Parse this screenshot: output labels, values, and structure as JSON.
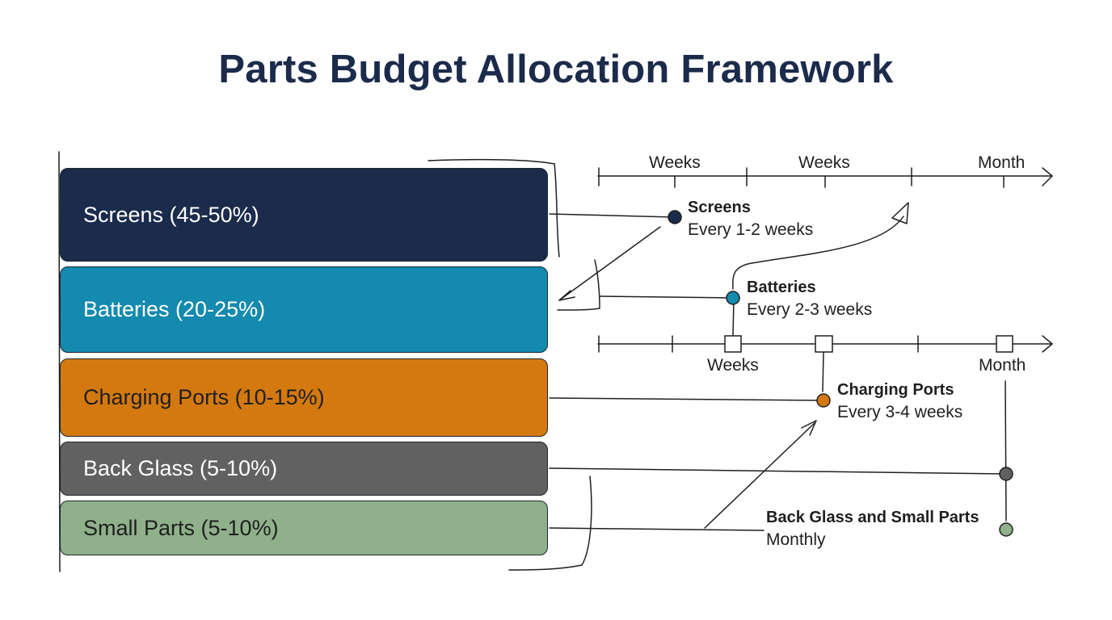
{
  "title": "Parts Budget Allocation Framework",
  "bars": [
    {
      "label": "Screens (45-50%)",
      "color": "#1b2b4b"
    },
    {
      "label": "Batteries (20-25%)",
      "color": "#138aae"
    },
    {
      "label": "Charging Ports (10-15%)",
      "color": "#d4790f"
    },
    {
      "label": "Back Glass (5-10%)",
      "color": "#616161"
    },
    {
      "label": "Small Parts (5-10%)",
      "color": "#8fb08b"
    }
  ],
  "top_timeline": {
    "ticks": [
      "Weeks",
      "Weeks",
      "Month"
    ]
  },
  "bottom_timeline": {
    "ticks": [
      "Weeks",
      "Month"
    ]
  },
  "schedules": [
    {
      "title": "Screens",
      "frequency": "Every 1-2 weeks",
      "color": "#1b2b4b"
    },
    {
      "title": "Batteries",
      "frequency": "Every 2-3 weeks",
      "color": "#138aae"
    },
    {
      "title": "Charging Ports",
      "frequency": "Every 3-4 weeks",
      "color": "#d4790f"
    },
    {
      "title": "Back Glass and Small Parts",
      "frequency": "Monthly",
      "color": "#616161"
    }
  ],
  "small_parts_dot_color": "#8fb08b"
}
